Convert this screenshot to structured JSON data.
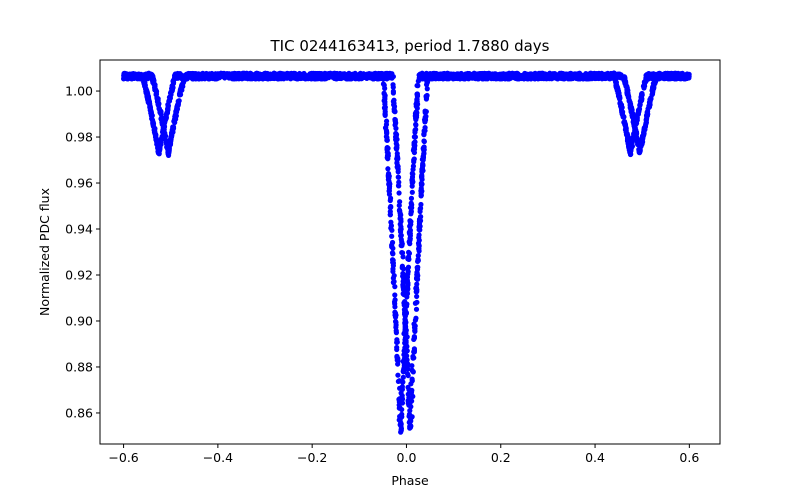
{
  "chart_data": {
    "type": "scatter",
    "title": "TIC 0244163413, period 1.7880 days",
    "xlabel": "Phase",
    "ylabel": "Normalized PDC flux",
    "xlim": [
      -0.65,
      0.665
    ],
    "ylim": [
      0.8465,
      1.0135
    ],
    "xticks": [
      -0.6,
      -0.4,
      -0.2,
      0.0,
      0.2,
      0.4,
      0.6
    ],
    "xtick_labels": [
      "−0.6",
      "−0.4",
      "−0.2",
      "0.0",
      "0.2",
      "0.4",
      "0.6"
    ],
    "yticks": [
      0.86,
      0.88,
      0.9,
      0.92,
      0.94,
      0.96,
      0.98,
      1.0
    ],
    "ytick_labels": [
      "0.86",
      "0.88",
      "0.90",
      "0.92",
      "0.94",
      "0.96",
      "0.98",
      "1.00"
    ],
    "grid": false,
    "legend": "none",
    "marker_color": "#0000ff",
    "phase_range": [
      -0.6,
      0.6
    ],
    "baseline_flux": 1.0065,
    "baseline_scatter": 0.0025,
    "primary_eclipse": {
      "center_phase": [
        -0.012,
        0.008
      ],
      "half_width": 0.038,
      "min_flux": 0.852,
      "scatter_spread": 0.03
    },
    "secondary_eclipses": [
      {
        "center_phase": [
          -0.525,
          -0.505
        ],
        "half_width": 0.035,
        "min_flux": 0.973
      },
      {
        "center_phase": [
          0.475,
          0.495
        ],
        "half_width": 0.035,
        "min_flux": 0.973
      }
    ],
    "sample_points": [
      {
        "x": -0.6,
        "y": 1.006
      },
      {
        "x": -0.525,
        "y": 0.973
      },
      {
        "x": -0.5,
        "y": 0.976
      },
      {
        "x": -0.4,
        "y": 1.006
      },
      {
        "x": -0.2,
        "y": 1.006
      },
      {
        "x": -0.05,
        "y": 1.007
      },
      {
        "x": -0.03,
        "y": 0.94
      },
      {
        "x": -0.012,
        "y": 0.853
      },
      {
        "x": 0.0,
        "y": 0.852
      },
      {
        "x": 0.008,
        "y": 0.856
      },
      {
        "x": 0.025,
        "y": 0.95
      },
      {
        "x": 0.05,
        "y": 1.006
      },
      {
        "x": 0.2,
        "y": 1.007
      },
      {
        "x": 0.4,
        "y": 1.006
      },
      {
        "x": 0.475,
        "y": 0.973
      },
      {
        "x": 0.5,
        "y": 0.977
      },
      {
        "x": 0.6,
        "y": 1.006
      }
    ]
  }
}
